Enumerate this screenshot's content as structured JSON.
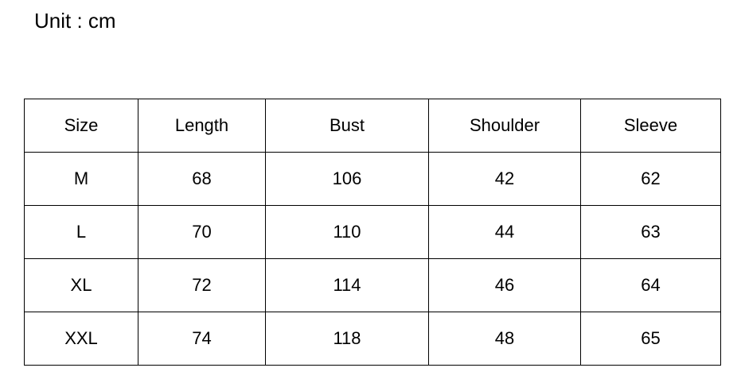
{
  "unit_label": "Unit : cm",
  "table": {
    "headers": [
      "Size",
      "Length",
      "Bust",
      "Shoulder",
      "Sleeve"
    ],
    "rows": [
      [
        "M",
        "68",
        "106",
        "42",
        "62"
      ],
      [
        "L",
        "70",
        "110",
        "44",
        "63"
      ],
      [
        "XL",
        "72",
        "114",
        "46",
        "64"
      ],
      [
        "XXL",
        "74",
        "118",
        "48",
        "65"
      ]
    ]
  }
}
